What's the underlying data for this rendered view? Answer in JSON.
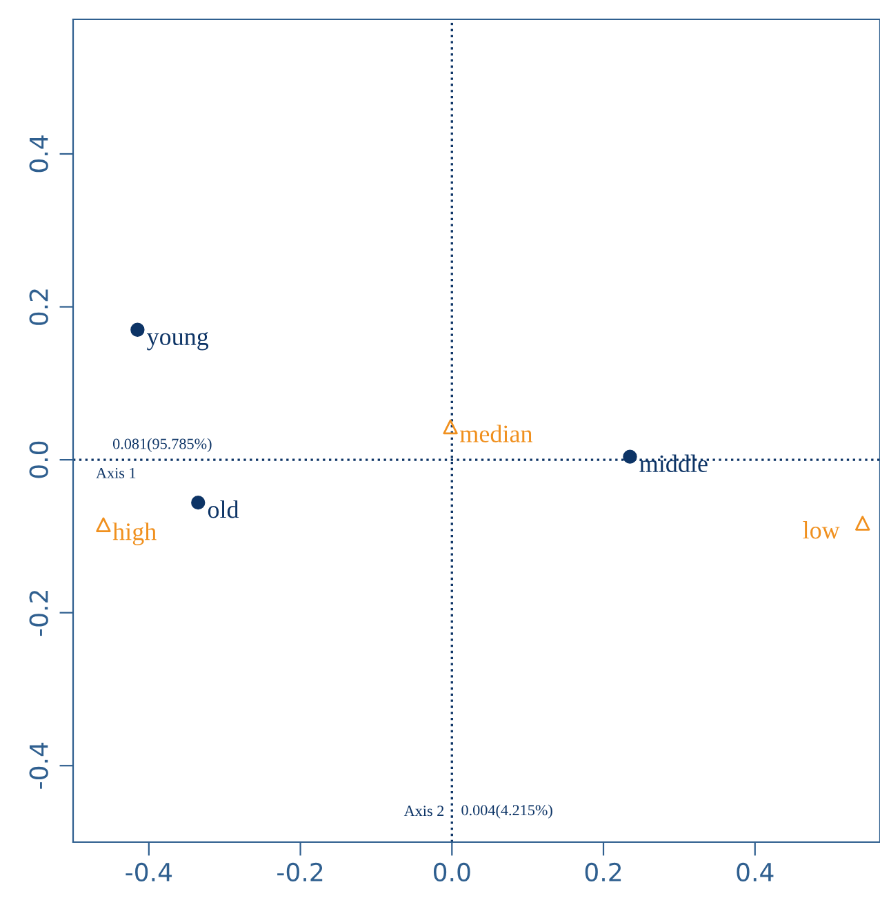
{
  "chart_data": {
    "type": "scatter",
    "xlim": [
      -0.5,
      0.565
    ],
    "ylim": [
      -0.5,
      0.576
    ],
    "xticks": [
      {
        "value": -0.4,
        "label": "-0.4"
      },
      {
        "value": -0.2,
        "label": "-0.2"
      },
      {
        "value": 0,
        "label": "0.0"
      },
      {
        "value": 0.2,
        "label": "0.2"
      },
      {
        "value": 0.4,
        "label": "0.4"
      }
    ],
    "yticks": [
      {
        "value": -0.4,
        "label": "-0.4"
      },
      {
        "value": -0.2,
        "label": "-0.2"
      },
      {
        "value": 0,
        "label": "0.0"
      },
      {
        "value": 0.2,
        "label": "0.2"
      },
      {
        "value": 0.4,
        "label": "0.4"
      }
    ],
    "grid": false,
    "series": [
      {
        "color": "#0d3466",
        "marker": "circle",
        "x": [
          -0.415,
          -0.335,
          0.235
        ],
        "values": [
          0.17,
          -0.056,
          0.004
        ]
      },
      {
        "color": "#f0901e",
        "marker": "triangle",
        "x": [
          -0.002,
          -0.46,
          0.542
        ],
        "values": [
          0.043,
          -0.085,
          -0.083
        ]
      }
    ],
    "ref_lines": [
      {
        "axis": "y",
        "value": 0,
        "label": "Axis 1",
        "color": "#0d3466",
        "line_style": "dotted"
      },
      {
        "axis": "x",
        "value": 0,
        "label": "Axis 2",
        "color": "#0d3466",
        "line_style": "dotted"
      }
    ],
    "annotations": [
      {
        "text": "young",
        "x": -0.415,
        "y": 0.17
      },
      {
        "text": "old",
        "x": -0.335,
        "y": -0.056
      },
      {
        "text": "middle",
        "x": 0.235,
        "y": 0.004
      },
      {
        "text": "median",
        "x": -0.002,
        "y": 0.043
      },
      {
        "text": "high",
        "x": -0.46,
        "y": -0.085
      },
      {
        "text": "low",
        "x": 0.542,
        "y": -0.083
      },
      {
        "text": "0.081(95.785%)",
        "x": -0.46,
        "y": 0
      },
      {
        "text": "0.004(4.215%)",
        "x": 0,
        "y": -0.46
      }
    ]
  }
}
